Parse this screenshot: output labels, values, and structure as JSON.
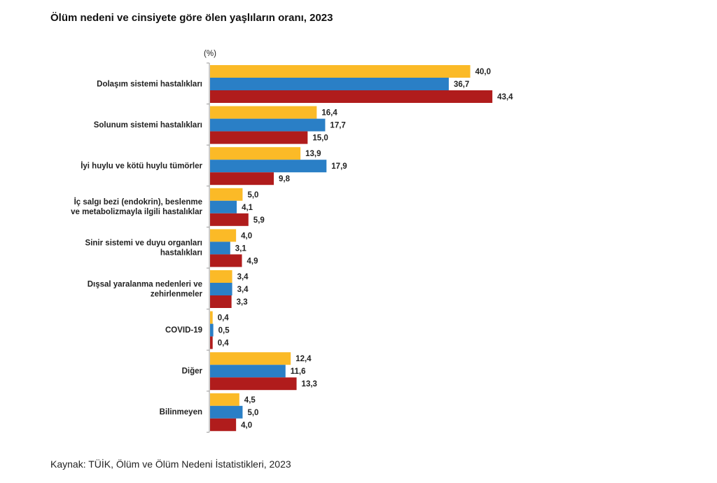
{
  "title": "Ölüm nedeni ve cinsiyete göre ölen yaşlıların oranı, 2023",
  "source": "Kaynak: TÜİK, Ölüm ve Ölüm Nedeni İstatistikleri, 2023",
  "chart_data": {
    "type": "bar",
    "orientation": "horizontal",
    "title": "Ölüm nedeni ve cinsiyete göre ölen yaşlıların oranı, 2023",
    "unit_label": "(%)",
    "categories": [
      [
        "Dolaşım sistemi hastalıkları"
      ],
      [
        "Solunum sistemi hastalıkları"
      ],
      [
        "İyi huylu ve kötü huylu tümörler"
      ],
      [
        "İç salgı bezi (endokrin), beslenme",
        "ve metabolizmayla ilgili hastalıklar"
      ],
      [
        "Sinir sistemi ve duyu organları",
        "hastalıkları"
      ],
      [
        "Dışsal yaralanma nedenleri ve",
        "zehirlenmeler"
      ],
      [
        "COVID-19"
      ],
      [
        "Diğer"
      ],
      [
        "Bilinmeyen"
      ]
    ],
    "series": [
      {
        "color": "#FBBA27",
        "values": [
          40.0,
          16.4,
          13.9,
          5.0,
          4.0,
          3.4,
          0.4,
          12.4,
          4.5
        ],
        "labels": [
          "40,0",
          "16,4",
          "13,9",
          "5,0",
          "4,0",
          "3,4",
          "0,4",
          "12,4",
          "4,5"
        ]
      },
      {
        "color": "#2A7FC6",
        "values": [
          36.7,
          17.7,
          17.9,
          4.1,
          3.1,
          3.4,
          0.5,
          11.6,
          5.0
        ],
        "labels": [
          "36,7",
          "17,7",
          "17,9",
          "4,1",
          "3,1",
          "3,4",
          "0,5",
          "11,6",
          "5,0"
        ]
      },
      {
        "color": "#B01C1C",
        "values": [
          43.4,
          15.0,
          9.8,
          5.9,
          4.9,
          3.3,
          0.4,
          13.3,
          4.0
        ],
        "labels": [
          "43,4",
          "15,0",
          "9,8",
          "5,9",
          "4,9",
          "3,3",
          "0,4",
          "13,3",
          "4,0"
        ]
      }
    ],
    "xlim": [
      0,
      45
    ],
    "grid": false,
    "legend": "none"
  }
}
